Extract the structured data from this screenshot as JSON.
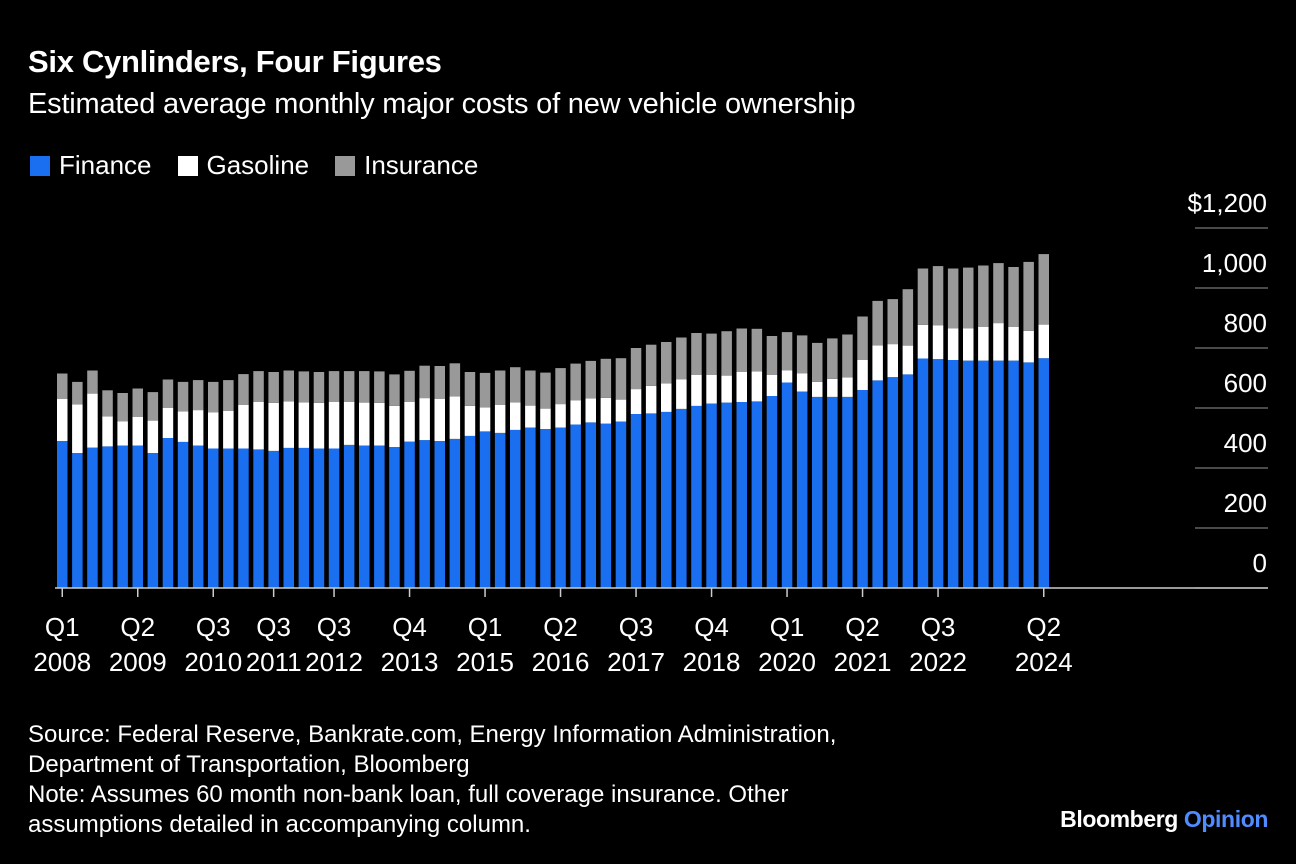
{
  "header": {
    "title": "Six Cynlinders, Four Figures",
    "subtitle": "Estimated average monthly major costs of new vehicle ownership"
  },
  "legend": [
    {
      "label": "Finance",
      "color": "#1a6ef0"
    },
    {
      "label": "Gasoline",
      "color": "#ffffff"
    },
    {
      "label": "Insurance",
      "color": "#999999"
    }
  ],
  "footer": {
    "source_line1": "Source: Federal Reserve, Bankrate.com, Energy Information Administration,",
    "source_line2": "Department of Transportation, Bloomberg",
    "note_line1": "Note: Assumes 60 month non-bank loan, full coverage insurance. Other",
    "note_line2": "assumptions detailed in accompanying column."
  },
  "brand": {
    "name": "Bloomberg",
    "product": "Opinion"
  },
  "chart_data": {
    "type": "bar",
    "stacked": true,
    "ylim": [
      0,
      1200
    ],
    "y_ticks": [
      {
        "value": 1200,
        "label": "$1,200"
      },
      {
        "value": 1000,
        "label": "1,000"
      },
      {
        "value": 800,
        "label": "800"
      },
      {
        "value": 600,
        "label": "600"
      },
      {
        "value": 400,
        "label": "400"
      },
      {
        "value": 200,
        "label": "200"
      },
      {
        "value": 0,
        "label": "0"
      }
    ],
    "x_ticks": [
      {
        "index": 0,
        "quarter": "Q1",
        "year": "2008"
      },
      {
        "index": 5,
        "quarter": "Q2",
        "year": "2009"
      },
      {
        "index": 10,
        "quarter": "Q3",
        "year": "2010"
      },
      {
        "index": 14,
        "quarter": "Q3",
        "year": "2011"
      },
      {
        "index": 18,
        "quarter": "Q3",
        "year": "2012"
      },
      {
        "index": 23,
        "quarter": "Q4",
        "year": "2013"
      },
      {
        "index": 28,
        "quarter": "Q1",
        "year": "2015"
      },
      {
        "index": 33,
        "quarter": "Q2",
        "year": "2016"
      },
      {
        "index": 38,
        "quarter": "Q3",
        "year": "2017"
      },
      {
        "index": 43,
        "quarter": "Q4",
        "year": "2018"
      },
      {
        "index": 48,
        "quarter": "Q1",
        "year": "2020"
      },
      {
        "index": 53,
        "quarter": "Q2",
        "year": "2021"
      },
      {
        "index": 58,
        "quarter": "Q3",
        "year": "2022"
      },
      {
        "index": 65,
        "quarter": "Q2",
        "year": "2024"
      }
    ],
    "categories": [
      "2008 Q1",
      "2008 Q2",
      "2008 Q3",
      "2008 Q4",
      "2009 Q1",
      "2009 Q2",
      "2009 Q3",
      "2009 Q4",
      "2010 Q1",
      "2010 Q2",
      "2010 Q3",
      "2010 Q4",
      "2011 Q1",
      "2011 Q2",
      "2011 Q3",
      "2011 Q4",
      "2012 Q1",
      "2012 Q2",
      "2012 Q3",
      "2012 Q4",
      "2013 Q1",
      "2013 Q2",
      "2013 Q3",
      "2013 Q4",
      "2014 Q1",
      "2014 Q2",
      "2014 Q3",
      "2014 Q4",
      "2015 Q1",
      "2015 Q2",
      "2015 Q3",
      "2015 Q4",
      "2016 Q1",
      "2016 Q2",
      "2016 Q3",
      "2016 Q4",
      "2017 Q1",
      "2017 Q2",
      "2017 Q3",
      "2017 Q4",
      "2018 Q1",
      "2018 Q2",
      "2018 Q3",
      "2018 Q4",
      "2019 Q1",
      "2019 Q2",
      "2019 Q3",
      "2019 Q4",
      "2020 Q1",
      "2020 Q2",
      "2020 Q3",
      "2020 Q4",
      "2021 Q1",
      "2021 Q2",
      "2021 Q3",
      "2021 Q4",
      "2022 Q1",
      "2022 Q2",
      "2022 Q3",
      "2022 Q4",
      "2023 Q1",
      "2023 Q2",
      "2023 Q3",
      "2023 Q4",
      "2024 Q1",
      "2024 Q2"
    ],
    "series": [
      {
        "name": "Finance",
        "color": "#1a6ef0",
        "values": [
          490,
          450,
          468,
          472,
          475,
          475,
          450,
          500,
          487,
          475,
          465,
          465,
          465,
          462,
          457,
          467,
          467,
          465,
          465,
          477,
          475,
          475,
          470,
          488,
          493,
          490,
          497,
          507,
          522,
          517,
          527,
          535,
          530,
          535,
          545,
          552,
          548,
          555,
          580,
          582,
          587,
          597,
          607,
          615,
          618,
          620,
          622,
          640,
          685,
          655,
          637,
          637,
          637,
          660,
          692,
          703,
          712,
          765,
          763,
          760,
          758,
          758,
          758,
          758,
          752,
          766
        ],
        "labels": [
          "2008 Q1 Finance",
          "2008 Q2 Finance",
          "2008 Q3 Finance",
          "2008 Q4 Finance",
          "2009 Q1 Finance",
          "2009 Q2 Finance",
          "2009 Q3 Finance",
          "2009 Q4 Finance",
          "2010 Q1 Finance",
          "2010 Q2 Finance",
          "2010 Q3 Finance",
          "2010 Q4 Finance",
          "2011 Q1 Finance",
          "2011 Q2 Finance",
          "2011 Q3 Finance",
          "2011 Q4 Finance",
          "2012 Q1 Finance",
          "2012 Q2 Finance",
          "2012 Q3 Finance",
          "2012 Q4 Finance",
          "2013 Q1 Finance",
          "2013 Q2 Finance",
          "2013 Q3 Finance",
          "2013 Q4 Finance",
          "2014 Q1 Finance",
          "2014 Q2 Finance",
          "2014 Q3 Finance",
          "2014 Q4 Finance",
          "2015 Q1 Finance",
          "2015 Q2 Finance",
          "2015 Q3 Finance",
          "2015 Q4 Finance",
          "2016 Q1 Finance",
          "2016 Q2 Finance",
          "2016 Q3 Finance",
          "2016 Q4 Finance",
          "2017 Q1 Finance",
          "2017 Q2 Finance",
          "2017 Q3 Finance",
          "2017 Q4 Finance",
          "2018 Q1 Finance",
          "2018 Q2 Finance",
          "2018 Q3 Finance",
          "2018 Q4 Finance",
          "2019 Q1 Finance",
          "2019 Q2 Finance",
          "2019 Q3 Finance",
          "2019 Q4 Finance",
          "2020 Q1 Finance",
          "2020 Q2 Finance",
          "2020 Q3 Finance",
          "2020 Q4 Finance",
          "2021 Q1 Finance",
          "2021 Q2 Finance",
          "2021 Q3 Finance",
          "2021 Q4 Finance",
          "2022 Q1 Finance",
          "2022 Q2 Finance",
          "2022 Q3 Finance",
          "2022 Q4 Finance",
          "2023 Q1 Finance",
          "2023 Q2 Finance",
          "2023 Q3 Finance",
          "2023 Q4 Finance",
          "2024 Q1 Finance",
          "2024 Q2 Finance"
        ]
      },
      {
        "name": "Gasoline",
        "color": "#ffffff",
        "values": [
          140,
          162,
          180,
          100,
          80,
          95,
          108,
          100,
          102,
          118,
          120,
          125,
          145,
          158,
          160,
          155,
          152,
          152,
          155,
          143,
          143,
          142,
          137,
          133,
          140,
          140,
          142,
          100,
          80,
          93,
          92,
          73,
          68,
          78,
          81,
          80,
          86,
          73,
          83,
          92,
          95,
          98,
          103,
          95,
          90,
          100,
          100,
          70,
          40,
          60,
          50,
          60,
          65,
          100,
          117,
          110,
          96,
          112,
          112,
          105,
          108,
          112,
          125,
          112,
          105,
          112
        ],
        "labels": [
          "2008 Q1 Gasoline",
          "2008 Q2 Gasoline",
          "2008 Q3 Gasoline",
          "2008 Q4 Gasoline",
          "2009 Q1 Gasoline",
          "2009 Q2 Gasoline",
          "2009 Q3 Gasoline",
          "2009 Q4 Gasoline",
          "2010 Q1 Gasoline",
          "2010 Q2 Gasoline",
          "2010 Q3 Gasoline",
          "2010 Q4 Gasoline",
          "2011 Q1 Gasoline",
          "2011 Q2 Gasoline",
          "2011 Q3 Gasoline",
          "2011 Q4 Gasoline",
          "2012 Q1 Gasoline",
          "2012 Q2 Gasoline",
          "2012 Q3 Gasoline",
          "2012 Q4 Gasoline",
          "2013 Q1 Gasoline",
          "2013 Q2 Gasoline",
          "2013 Q3 Gasoline",
          "2013 Q4 Gasoline",
          "2014 Q1 Gasoline",
          "2014 Q2 Gasoline",
          "2014 Q3 Gasoline",
          "2014 Q4 Gasoline",
          "2015 Q1 Gasoline",
          "2015 Q2 Gasoline",
          "2015 Q3 Gasoline",
          "2015 Q4 Gasoline",
          "2016 Q1 Gasoline",
          "2016 Q2 Gasoline",
          "2016 Q3 Gasoline",
          "2016 Q4 Gasoline",
          "2017 Q1 Gasoline",
          "2017 Q2 Gasoline",
          "2017 Q3 Gasoline",
          "2017 Q4 Gasoline",
          "2018 Q1 Gasoline",
          "2018 Q2 Gasoline",
          "2018 Q3 Gasoline",
          "2018 Q4 Gasoline",
          "2019 Q1 Gasoline",
          "2019 Q2 Gasoline",
          "2019 Q3 Gasoline",
          "2019 Q4 Gasoline",
          "2020 Q1 Gasoline",
          "2020 Q2 Gasoline",
          "2020 Q3 Gasoline",
          "2020 Q4 Gasoline",
          "2021 Q1 Gasoline",
          "2021 Q2 Gasoline",
          "2021 Q3 Gasoline",
          "2021 Q4 Gasoline",
          "2022 Q1 Gasoline",
          "2022 Q2 Gasoline",
          "2022 Q3 Gasoline",
          "2022 Q4 Gasoline",
          "2023 Q1 Gasoline",
          "2023 Q2 Gasoline",
          "2023 Q3 Gasoline",
          "2023 Q4 Gasoline",
          "2024 Q1 Gasoline",
          "2024 Q2 Gasoline"
        ]
      },
      {
        "name": "Insurance",
        "color": "#999999",
        "values": [
          85,
          75,
          77,
          87,
          95,
          95,
          95,
          95,
          98,
          100,
          102,
          103,
          103,
          103,
          103,
          103,
          103,
          103,
          103,
          103,
          105,
          105,
          105,
          103,
          108,
          110,
          110,
          113,
          115,
          115,
          117,
          117,
          120,
          120,
          122,
          125,
          130,
          138,
          137,
          137,
          138,
          140,
          140,
          138,
          148,
          145,
          142,
          130,
          128,
          127,
          130,
          135,
          143,
          145,
          148,
          150,
          188,
          188,
          198,
          200,
          202,
          205,
          200,
          200,
          230,
          235
        ],
        "labels": [
          "2008 Q1 Insurance",
          "2008 Q2 Insurance",
          "2008 Q3 Insurance",
          "2008 Q4 Insurance",
          "2009 Q1 Insurance",
          "2009 Q2 Insurance",
          "2009 Q3 Insurance",
          "2009 Q4 Insurance",
          "2010 Q1 Insurance",
          "2010 Q2 Insurance",
          "2010 Q3 Insurance",
          "2010 Q4 Insurance",
          "2011 Q1 Insurance",
          "2011 Q2 Insurance",
          "2011 Q3 Insurance",
          "2011 Q4 Insurance",
          "2012 Q1 Insurance",
          "2012 Q2 Insurance",
          "2012 Q3 Insurance",
          "2012 Q4 Insurance",
          "2013 Q1 Insurance",
          "2013 Q2 Insurance",
          "2013 Q3 Insurance",
          "2013 Q4 Insurance",
          "2014 Q1 Insurance",
          "2014 Q2 Insurance",
          "2014 Q3 Insurance",
          "2014 Q4 Insurance",
          "2015 Q1 Insurance",
          "2015 Q2 Insurance",
          "2015 Q3 Insurance",
          "2015 Q4 Insurance",
          "2016 Q1 Insurance",
          "2016 Q2 Insurance",
          "2016 Q3 Insurance",
          "2016 Q4 Insurance",
          "2017 Q1 Insurance",
          "2017 Q2 Insurance",
          "2017 Q3 Insurance",
          "2017 Q4 Insurance",
          "2018 Q1 Insurance",
          "2018 Q2 Insurance",
          "2018 Q3 Insurance",
          "2018 Q4 Insurance",
          "2019 Q1 Insurance",
          "2019 Q2 Insurance",
          "2019 Q3 Insurance",
          "2019 Q4 Insurance",
          "2020 Q1 Insurance",
          "2020 Q2 Insurance",
          "2020 Q3 Insurance",
          "2020 Q4 Insurance",
          "2021 Q1 Insurance",
          "2021 Q2 Insurance",
          "2021 Q3 Insurance",
          "2021 Q4 Insurance",
          "2022 Q1 Insurance",
          "2022 Q2 Insurance",
          "2022 Q3 Insurance",
          "2022 Q4 Insurance",
          "2023 Q1 Insurance",
          "2023 Q2 Insurance",
          "2023 Q3 Insurance",
          "2023 Q4 Insurance",
          "2024 Q1 Insurance",
          "2024 Q2 Insurance"
        ]
      }
    ]
  }
}
